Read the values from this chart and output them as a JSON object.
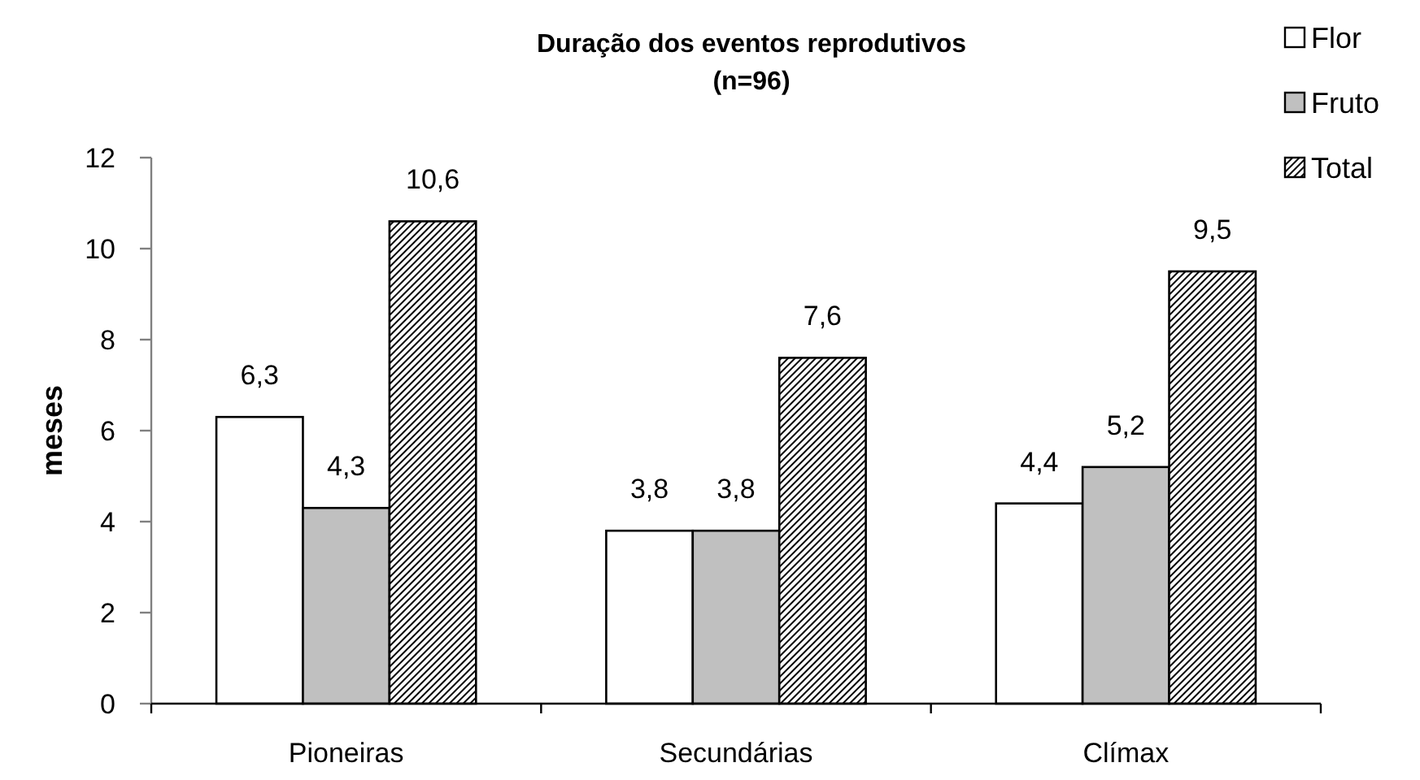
{
  "chart_data": {
    "type": "bar",
    "title": "Duração dos eventos reprodutivos\n(n=96)",
    "ylabel": "meses",
    "categories": [
      "Pioneiras",
      "Secundárias",
      "Clímax"
    ],
    "series": [
      {
        "name": "Flor",
        "color": "#ffffff",
        "values": [
          6.3,
          3.8,
          4.4
        ],
        "value_labels": [
          "6,3",
          "3,8",
          "4,4"
        ]
      },
      {
        "name": "Fruto",
        "color": "#c0c0c0",
        "values": [
          4.3,
          3.8,
          5.2
        ],
        "value_labels": [
          "4,3",
          "3,8",
          "5,2"
        ]
      },
      {
        "name": "Total",
        "color": "#000000",
        "values": [
          10.6,
          7.6,
          9.5
        ],
        "value_labels": [
          "10,6",
          "7,6",
          "9,5"
        ]
      }
    ],
    "ylim": [
      0,
      12
    ],
    "yticks": [
      0,
      2,
      4,
      6,
      8,
      10,
      12
    ],
    "legend": "top right"
  }
}
